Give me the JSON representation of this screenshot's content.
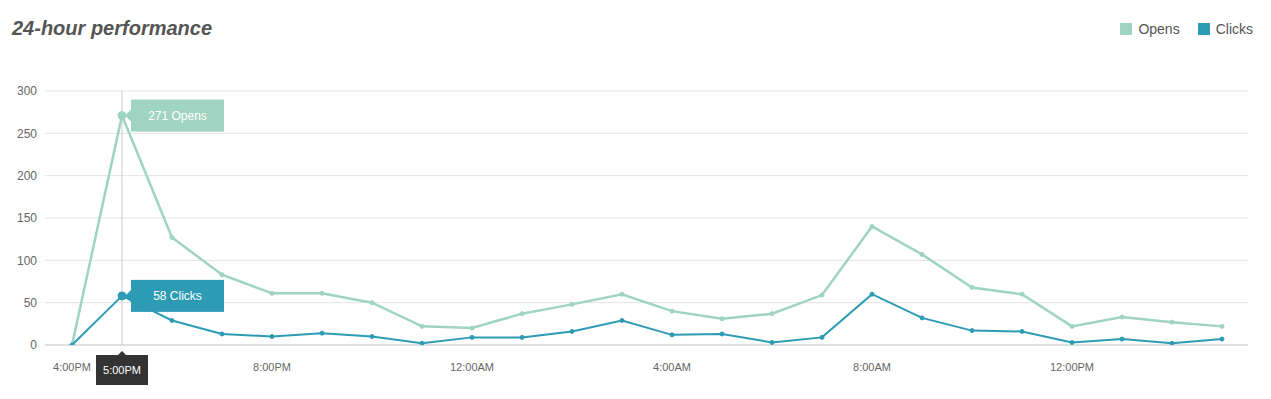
{
  "chart_data": {
    "type": "line",
    "title": "24-hour performance",
    "categories": [
      "4:00PM",
      "5:00PM",
      null,
      null,
      "8:00PM",
      null,
      null,
      null,
      "12:00AM",
      null,
      null,
      null,
      "4:00AM",
      null,
      null,
      null,
      "8:00AM",
      null,
      null,
      null,
      "12:00PM",
      null,
      null,
      null
    ],
    "series": [
      {
        "name": "Opens",
        "color": "#9fd3c2",
        "marker": "circle",
        "values": [
          0,
          271,
          127,
          83,
          61,
          61,
          50,
          22,
          20,
          37,
          48,
          60,
          40,
          31,
          37,
          59,
          140,
          107,
          68,
          60,
          22,
          33,
          27,
          22
        ],
        "value_labels": [
          null,
          "271 Opens",
          null,
          null,
          null,
          null,
          null,
          null,
          null,
          null,
          null,
          null,
          null,
          null,
          null,
          null,
          null,
          null,
          null,
          null,
          null,
          null,
          null,
          null
        ]
      },
      {
        "name": "Clicks",
        "color": "#2d9bb4",
        "marker": "circle",
        "values": [
          0,
          58,
          29,
          13,
          10,
          14,
          10,
          2,
          9,
          9,
          16,
          29,
          12,
          13,
          3,
          9,
          60,
          32,
          17,
          16,
          3,
          7,
          2,
          7
        ],
        "value_labels": [
          null,
          "58 Clicks",
          null,
          null,
          null,
          null,
          null,
          null,
          null,
          null,
          null,
          null,
          null,
          null,
          null,
          null,
          null,
          null,
          null,
          null,
          null,
          null,
          null,
          null
        ]
      }
    ],
    "ylim": [
      0,
      300
    ],
    "yticks": [
      0,
      50,
      100,
      150,
      200,
      250,
      300
    ],
    "grid": true,
    "legend": "top right"
  }
}
